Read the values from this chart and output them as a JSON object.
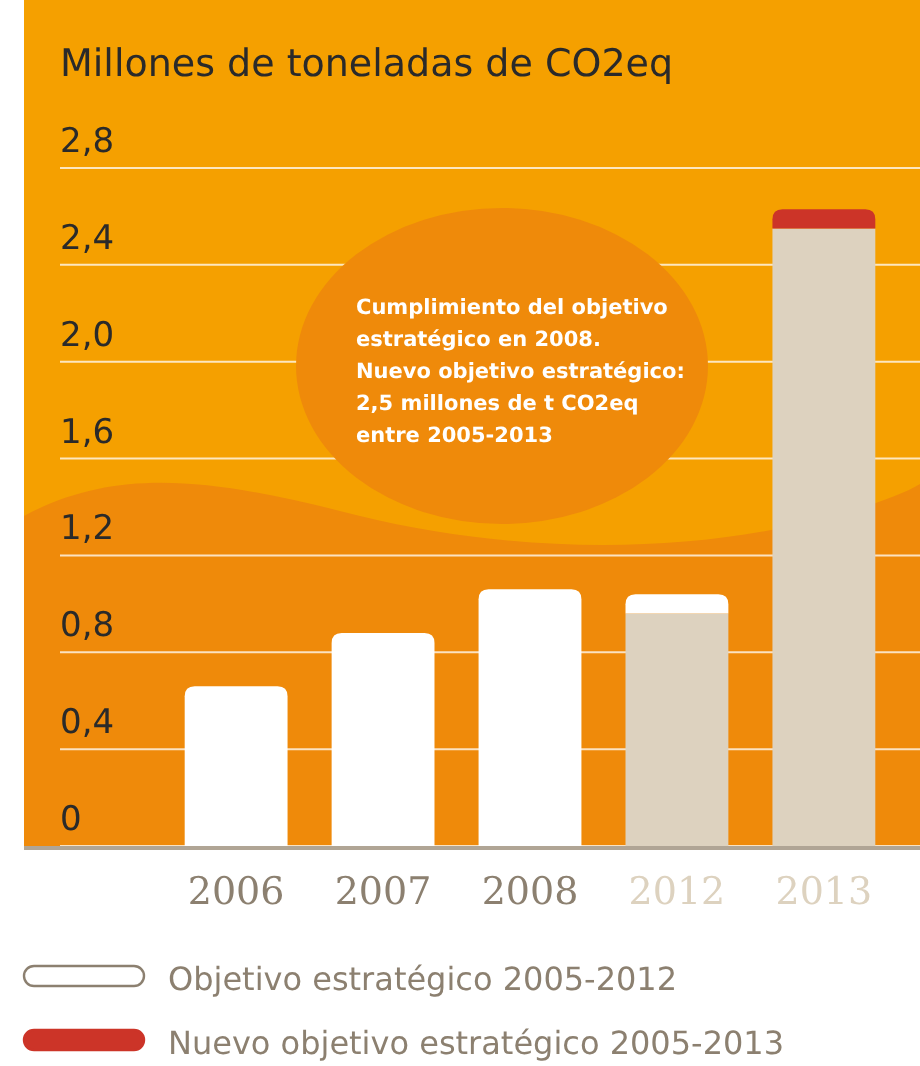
{
  "chart_data": {
    "type": "bar",
    "title": "Millones de toneladas de CO2eq",
    "categories": [
      "2006",
      "2007",
      "2008",
      "2012",
      "2013"
    ],
    "stacked": true,
    "series": [
      {
        "colors": [
          "#ffffff",
          "#ffffff",
          "#ffffff",
          "#ddd2bf",
          "#ddd2bf"
        ],
        "values": [
          0.66,
          0.88,
          1.06,
          0.96,
          2.55
        ]
      },
      {
        "name": "Objetivo estratégico 2005-2012",
        "color": "#ffffff",
        "values": [
          null,
          null,
          null,
          0.08,
          null
        ]
      },
      {
        "name": "Nuevo objetivo estratégico 2005-2013",
        "color": "#cc3428",
        "values": [
          null,
          null,
          null,
          null,
          0.08
        ]
      }
    ],
    "ylim": [
      0,
      2.8
    ],
    "yticks": [
      {
        "value": 0,
        "label": "0"
      },
      {
        "value": 0.4,
        "label": "0,4"
      },
      {
        "value": 0.8,
        "label": "0,8"
      },
      {
        "value": 1.2,
        "label": "1,2"
      },
      {
        "value": 1.6,
        "label": "1,6"
      },
      {
        "value": 2,
        "label": "2,0"
      },
      {
        "value": 2.4,
        "label": "2,4"
      },
      {
        "value": 2.8,
        "label": "2,8"
      }
    ],
    "grid": "y",
    "legend": "bottom",
    "annotations": [
      "Cumplimiento del objetivo\nestratégico en 2008.\nNuevo objetivo estratégico:\n2,5 millones de t CO2eq\nentre 2005-2013"
    ]
  }
}
